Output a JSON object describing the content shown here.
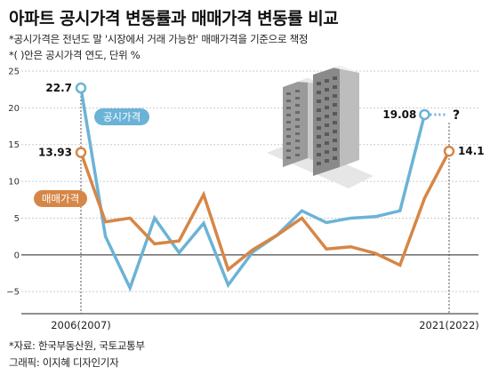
{
  "header": {
    "title": "아파트 공시가격 변동률과 매매가격 변동률 비교",
    "note1": "*공시가격은 전년도 말 '시장에서 거래 가능한' 매매가격을 기준으로 책정",
    "note2": "*( )안은 공시가격 연도, 단위 %"
  },
  "footer": {
    "source": "*자료: 한국부동산원, 국토교통부",
    "credit": "그래픽: 이지혜 디자인기자"
  },
  "colors": {
    "public_price": "#6bb3d6",
    "trade_price": "#d68646",
    "axis": "#222222",
    "grid": "#cccccc",
    "building": "#8a8a8a"
  },
  "chart_data": {
    "type": "line",
    "x": [
      2006,
      2007,
      2008,
      2009,
      2010,
      2011,
      2012,
      2013,
      2014,
      2015,
      2016,
      2017,
      2018,
      2019,
      2020,
      2021
    ],
    "xtick_labels": [
      "2006(2007)",
      "2021(2022)"
    ],
    "ylim": [
      -8,
      25
    ],
    "yticks": [
      -5,
      0,
      5,
      10,
      15,
      20,
      25
    ],
    "ytick_labels": [
      "−5",
      "0",
      "5",
      "10",
      "15",
      "20",
      "25"
    ],
    "grid": "horizontal",
    "series": [
      {
        "name": "공시가격",
        "color": "#6bb3d6",
        "values": [
          22.7,
          2.5,
          -4.5,
          5.0,
          0.3,
          4.3,
          -4.1,
          0.4,
          2.7,
          6.0,
          4.4,
          5.0,
          5.2,
          6.0,
          19.08,
          null
        ],
        "projected_label": "?"
      },
      {
        "name": "매매가격",
        "color": "#d68646",
        "values": [
          13.93,
          4.5,
          5.0,
          1.5,
          1.9,
          8.2,
          -2.0,
          0.7,
          2.7,
          5.0,
          0.8,
          1.1,
          0.2,
          -1.4,
          7.7,
          14.1
        ]
      }
    ],
    "data_labels": [
      {
        "series": "공시가격",
        "x": 2006,
        "text": "22.7"
      },
      {
        "series": "매매가격",
        "x": 2006,
        "text": "13.93"
      },
      {
        "series": "공시가격",
        "x": 2020,
        "text": "19.08"
      },
      {
        "series": "매매가격",
        "x": 2021,
        "text": "14.1"
      }
    ]
  }
}
